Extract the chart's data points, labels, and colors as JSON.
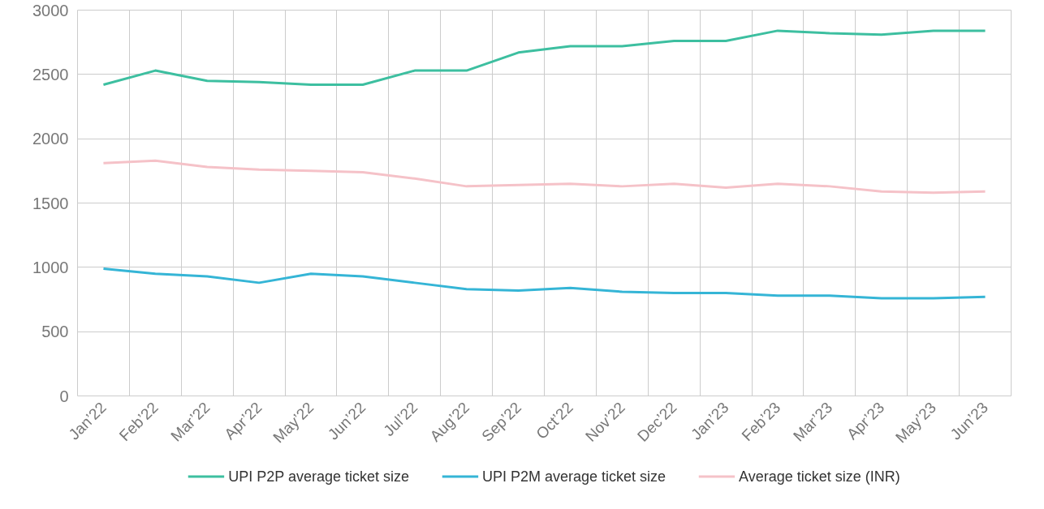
{
  "chart_data": {
    "type": "line",
    "categories": [
      "Jan’22",
      "Feb’22",
      "Mar’22",
      "Apr’22",
      "May’22",
      "Jun’22",
      "Jul’22",
      "Aug’22",
      "Sep’22",
      "Oct’22",
      "Nov’22",
      "Dec’22",
      "Jan’23",
      "Feb’23",
      "Mar’23",
      "Apr’23",
      "May’23",
      "Jun’23"
    ],
    "series": [
      {
        "name": "UPI P2P average ticket size",
        "color": "#3dbfa0",
        "values": [
          2420,
          2530,
          2450,
          2440,
          2420,
          2420,
          2530,
          2530,
          2670,
          2720,
          2720,
          2760,
          2760,
          2840,
          2820,
          2810,
          2840,
          2840
        ]
      },
      {
        "name": "UPI P2M average ticket size",
        "color": "#35b5d6",
        "values": [
          990,
          950,
          930,
          880,
          950,
          930,
          880,
          830,
          820,
          840,
          810,
          800,
          800,
          780,
          780,
          760,
          760,
          770
        ]
      },
      {
        "name": "Average ticket size (INR)",
        "color": "#f5c2c8",
        "values": [
          1810,
          1830,
          1780,
          1760,
          1750,
          1740,
          1690,
          1630,
          1640,
          1650,
          1630,
          1650,
          1620,
          1650,
          1630,
          1590,
          1580,
          1590
        ]
      }
    ],
    "ylim": [
      0,
      3000
    ],
    "yticks": [
      0,
      500,
      1000,
      1500,
      2000,
      2500,
      3000
    ],
    "grid": true,
    "legend": "bottom",
    "marker": "none",
    "line_style": "solid"
  }
}
